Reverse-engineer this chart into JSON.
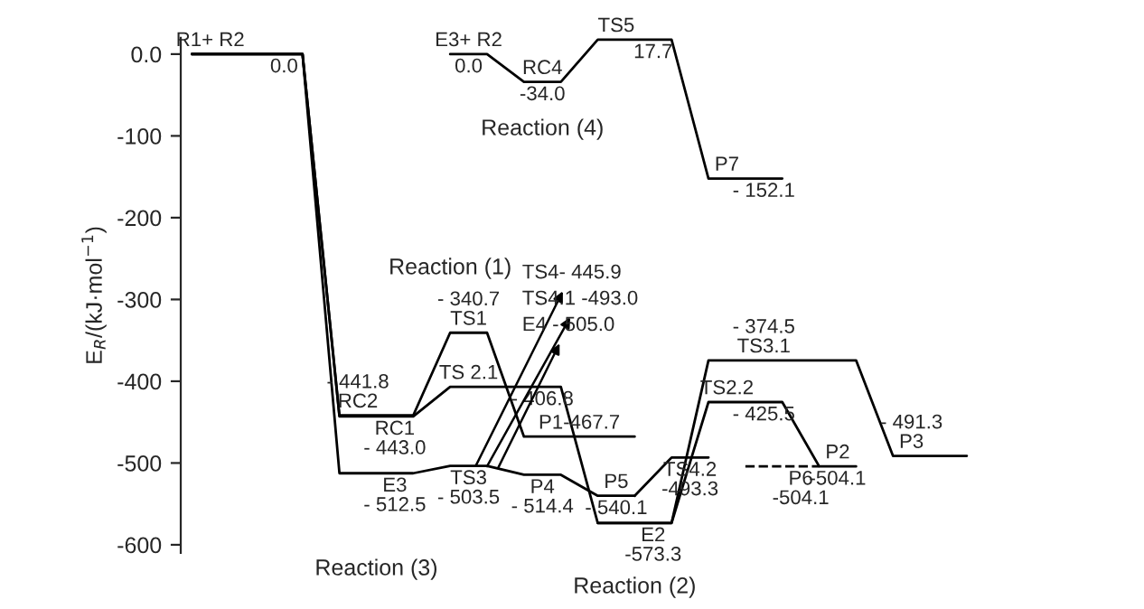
{
  "chart_data": {
    "type": "line",
    "ylabel": "E$_{R}$/(kJ·mol$^{−1}$)",
    "categories": [
      null,
      null,
      null,
      null,
      null,
      null,
      null,
      null,
      null,
      null,
      null,
      null,
      null,
      null,
      null,
      null,
      null,
      null,
      null,
      null,
      null,
      null,
      null,
      null,
      null
    ],
    "ylim": [
      -610,
      20
    ],
    "yticks": [
      {
        "value": 0,
        "label": "0.0"
      },
      -100,
      -200,
      -300,
      -400,
      -500,
      -600
    ],
    "tick_labels": "y",
    "grid": false,
    "legend": false,
    "marker": "none",
    "series": [
      {
        "color": "#000000",
        "line_style": "solid",
        "values": [
          0,
          0,
          0,
          0,
          -441.8,
          -441.8,
          -441.8,
          -340.7,
          -340.7,
          -467.7,
          -467.7,
          -467.7,
          -467.7,
          null,
          null,
          null,
          null,
          null,
          null,
          null,
          null,
          null,
          null,
          null,
          null
        ],
        "value_labels": [
          "R1+ R2",
          null,
          null,
          "0.0",
          "- 441.8\nRC2",
          null,
          null,
          "- 340.7\nTS1",
          null,
          null,
          "P1-467.7",
          null,
          null,
          null,
          null,
          null,
          null,
          null,
          null,
          null,
          null,
          null,
          null,
          null,
          null
        ]
      },
      {
        "color": "#000000",
        "line_style": "solid",
        "values": [
          0,
          0,
          0,
          0,
          -443.0,
          -443.0,
          -443.0,
          -406.8,
          -406.8,
          -406.8,
          -406.8,
          -573.3,
          -573.3,
          -573.3,
          -425.5,
          -425.5,
          -425.5,
          -504.1,
          -504.1,
          null,
          null,
          null,
          null,
          null,
          null
        ],
        "value_labels": [
          null,
          null,
          null,
          null,
          null,
          null,
          "RC1\n- 443.0",
          "TS 2.1",
          null,
          null,
          "- 406.8",
          null,
          null,
          "E2\n-573.3",
          "TS2.2",
          null,
          "- 425.5",
          "P2",
          "-504.1",
          null,
          null,
          null,
          null,
          null,
          null
        ]
      },
      {
        "color": "#000000",
        "line_style": "solid",
        "values": [
          0,
          0,
          0,
          0,
          -512.5,
          -512.5,
          -512.5,
          -503.5,
          -503.5,
          -514.4,
          -514.4,
          -540.1,
          -540.1,
          null,
          null,
          null,
          null,
          null,
          null,
          null,
          null,
          null,
          null,
          null,
          null
        ],
        "value_labels": [
          null,
          null,
          null,
          null,
          null,
          null,
          "E3\n- 512.5",
          null,
          "TS3\n- 503.5",
          null,
          "P4\n- 514.4",
          "P5",
          "- 540.1",
          null,
          null,
          null,
          null,
          null,
          null,
          null,
          null,
          null,
          null,
          null,
          null
        ]
      },
      {
        "color": "#000000",
        "line_style": "solid",
        "values": [
          null,
          null,
          null,
          null,
          null,
          null,
          null,
          null,
          null,
          null,
          null,
          -573.3,
          -573.3,
          -573.3,
          -374.5,
          -374.5,
          -374.5,
          -374.5,
          -374.5,
          -491.3,
          -491.3,
          -491.3,
          null,
          null,
          null
        ],
        "value_labels": [
          null,
          null,
          null,
          null,
          null,
          null,
          null,
          null,
          null,
          null,
          null,
          null,
          null,
          null,
          null,
          "- 374.5\nTS3.1",
          null,
          null,
          null,
          "- 491.3\nP3",
          null,
          null,
          null,
          null,
          null
        ]
      },
      {
        "color": "#000000",
        "line_style": "solid",
        "values": [
          null,
          null,
          null,
          null,
          null,
          null,
          null,
          0,
          0,
          -34.0,
          -34.0,
          17.7,
          17.7,
          17.7,
          -152.1,
          -152.1,
          -152.1,
          null,
          null,
          null,
          null,
          null,
          null,
          null,
          null
        ],
        "value_labels": [
          null,
          null,
          null,
          null,
          null,
          null,
          null,
          "E3+ R2",
          "0.0",
          "RC4",
          "-34.0",
          "TS5",
          null,
          "17.7",
          "P7",
          null,
          "- 152.1",
          null,
          null,
          null,
          null,
          null,
          null,
          null,
          null
        ]
      },
      {
        "color": "#000000",
        "line_style": "solid",
        "values": [
          null,
          null,
          null,
          null,
          null,
          null,
          null,
          null,
          null,
          null,
          null,
          null,
          -540.1,
          -493.3,
          -493.3,
          null,
          null,
          null,
          null,
          null,
          null,
          null,
          null,
          null,
          null
        ],
        "value_labels": [
          null,
          null,
          null,
          null,
          null,
          null,
          null,
          null,
          null,
          null,
          null,
          null,
          null,
          null,
          "TS4.2\n-493.3",
          null,
          null,
          null,
          null,
          null,
          null,
          null,
          null,
          null,
          null
        ]
      },
      {
        "color": "#000000",
        "line_style": "dashed",
        "values": [
          null,
          null,
          null,
          null,
          null,
          null,
          null,
          null,
          null,
          null,
          null,
          null,
          null,
          null,
          null,
          -504.1,
          -504.1,
          -504.1,
          null,
          null,
          null,
          null,
          null,
          null,
          null
        ],
        "value_labels": [
          null,
          null,
          null,
          null,
          null,
          null,
          null,
          null,
          null,
          null,
          null,
          null,
          null,
          null,
          null,
          null,
          null,
          "P6\n-504.1",
          null,
          null,
          null,
          null,
          null,
          null,
          null
        ]
      }
    ],
    "annotations": [
      "Reaction (1)",
      "Reaction (2)",
      "Reaction (3)",
      "Reaction (4)",
      "TS4- 445.9",
      "TS4.1 -493.0",
      "E4 - 505.0"
    ]
  }
}
